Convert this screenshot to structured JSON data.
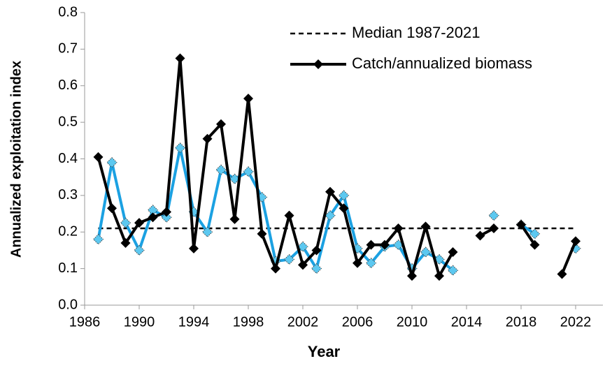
{
  "chart_data": {
    "type": "line",
    "xlabel": "Year",
    "ylabel": "Annualized exploitation index",
    "x": [
      1987,
      1988,
      1989,
      1990,
      1991,
      1992,
      1993,
      1994,
      1995,
      1996,
      1997,
      1998,
      1999,
      2000,
      2001,
      2002,
      2003,
      2004,
      2005,
      2006,
      2007,
      2008,
      2009,
      2010,
      2011,
      2012,
      2013,
      2014,
      2015,
      2016,
      2017,
      2018,
      2019,
      2020,
      2021,
      2022
    ],
    "series": [
      {
        "color": "#1ba1e2",
        "values": [
          0.18,
          0.39,
          0.225,
          0.15,
          0.26,
          0.24,
          0.43,
          0.255,
          0.2,
          0.37,
          0.345,
          0.365,
          0.295,
          0.12,
          0.125,
          0.16,
          0.1,
          0.245,
          0.3,
          0.155,
          0.115,
          0.16,
          0.165,
          0.1,
          0.145,
          0.125,
          0.095,
          null,
          null,
          0.245,
          null,
          0.22,
          0.195,
          null,
          null,
          0.155
        ]
      },
      {
        "name": "Catch/annualized biomass",
        "color": "#000000",
        "values": [
          0.405,
          0.265,
          0.17,
          0.225,
          0.24,
          0.255,
          0.675,
          0.155,
          0.455,
          0.495,
          0.235,
          0.565,
          0.195,
          0.1,
          0.245,
          0.11,
          0.15,
          0.31,
          0.265,
          0.115,
          0.165,
          0.165,
          0.21,
          0.08,
          0.215,
          0.08,
          0.145,
          null,
          0.19,
          0.21,
          null,
          0.22,
          0.165,
          null,
          0.085,
          0.175
        ]
      }
    ],
    "median": {
      "name": "Median 1987-2021",
      "value": 0.21
    },
    "xlim": [
      1986,
      2024
    ],
    "xticks": [
      1986,
      1990,
      1994,
      1998,
      2002,
      2006,
      2010,
      2014,
      2018,
      2022
    ],
    "ylim": [
      0,
      0.8
    ],
    "yticks": [
      {
        "value": 0,
        "label": "0.0"
      },
      0.1,
      0.2,
      0.3,
      0.4,
      0.5,
      0.6,
      0.7,
      0.8
    ],
    "legend": "top-right"
  }
}
